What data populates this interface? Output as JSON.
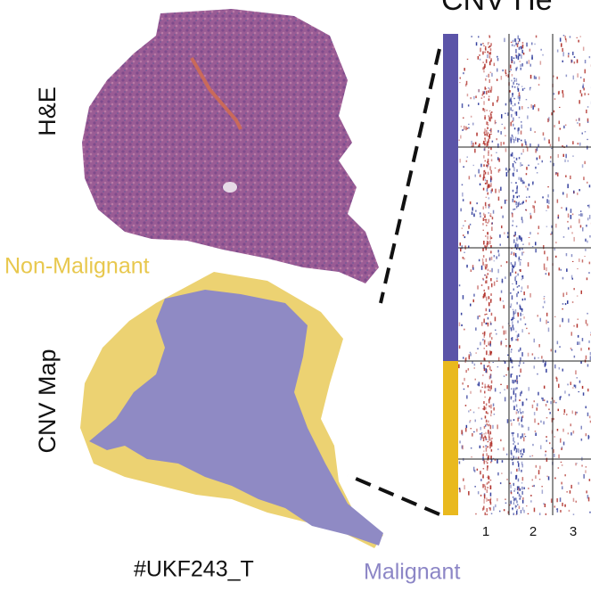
{
  "title": "CNV He",
  "left_labels": {
    "he": "H&E",
    "cnv_map": "CNV Map"
  },
  "legend": {
    "non_malignant": "Non-Malignant",
    "malignant": "Malignant"
  },
  "sample_id": "#UKF243_T",
  "chromosomes": [
    "1",
    "2",
    "3"
  ]
}
